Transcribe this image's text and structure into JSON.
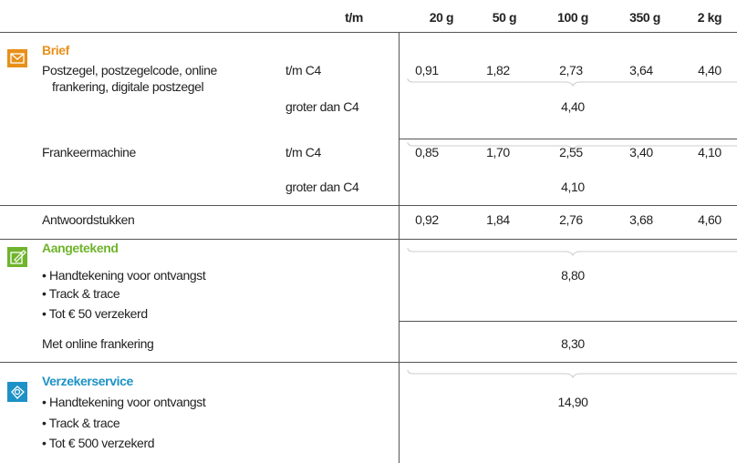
{
  "header": {
    "columns": [
      "t/m",
      "20 g",
      "50 g",
      "100 g",
      "350 g",
      "2 kg"
    ]
  },
  "brief": {
    "title": "Brief",
    "postzegel": {
      "label": [
        "Postzegel, postzegelcode, online",
        "frankering, digitale postzegel"
      ],
      "rows": [
        {
          "size": "t/m C4",
          "values": [
            "0,91",
            "1,82",
            "2,73",
            "3,64",
            "4,40"
          ]
        },
        {
          "size": "groter dan C4",
          "value": "4,40"
        }
      ]
    },
    "frankeermachine": {
      "label": "Frankeermachine",
      "rows": [
        {
          "size": "t/m C4",
          "values": [
            "0,85",
            "1,70",
            "2,55",
            "3,40",
            "4,10"
          ]
        },
        {
          "size": "groter dan C4",
          "value": "4,10"
        }
      ]
    },
    "antwoordstukken": {
      "label": "Antwoordstukken",
      "values": [
        "0,92",
        "1,84",
        "2,76",
        "3,68",
        "4,60"
      ]
    }
  },
  "aangetekend": {
    "title": "Aangetekend",
    "bullets": [
      "• Handtekening voor ontvangst",
      "• Track & trace",
      "• Tot € 50 verzekerd"
    ],
    "value": "8,80",
    "online": {
      "label": "Met online frankering",
      "value": "8,30"
    }
  },
  "verzekerservice": {
    "title": "Verzekerservice",
    "bullets": [
      "• Handtekening voor ontvangst",
      "• Track & trace",
      "• Tot € 500 verzekerd"
    ],
    "value": "14,90"
  }
}
